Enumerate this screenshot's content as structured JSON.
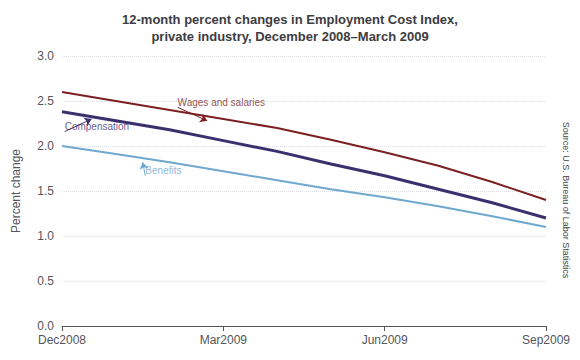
{
  "chart_data": {
    "type": "line",
    "title": "12-month percent changes in Employment Cost Index,\nprivate industry, December 2008–March 2009",
    "ylabel": "Percent change",
    "source": "Source: U.S. Bureau of Labor Statistics",
    "x": [
      0,
      1,
      2,
      3,
      4,
      5,
      6,
      7,
      8,
      9
    ],
    "xlim": [
      0,
      9
    ],
    "xticks": [
      {
        "value": 0,
        "label": "Dec2008"
      },
      {
        "value": 3,
        "label": "Mar2009"
      },
      {
        "value": 6,
        "label": "Jun2009"
      },
      {
        "value": 9,
        "label": "Sep2009"
      }
    ],
    "ylim": [
      0.0,
      3.0
    ],
    "yticks": [
      {
        "value": 0.0,
        "label": "0.0"
      },
      0.5,
      {
        "value": 1.0,
        "label": "1.0"
      },
      1.5,
      {
        "value": 2.0,
        "label": "2.0"
      },
      2.5,
      {
        "value": 3.0,
        "label": "3.0"
      }
    ],
    "grid": true,
    "series": [
      {
        "color": "#7B2020",
        "values": [
          2.6,
          2.5,
          2.4,
          2.3,
          2.2,
          2.07,
          1.93,
          1.78,
          1.6,
          1.4
        ]
      },
      {
        "color": "#3B2F6E",
        "values": [
          2.38,
          2.28,
          2.18,
          2.06,
          1.94,
          1.8,
          1.67,
          1.52,
          1.37,
          1.2
        ]
      },
      {
        "color": "#6EA8D0",
        "values": [
          2.0,
          1.91,
          1.82,
          1.72,
          1.62,
          1.52,
          1.43,
          1.33,
          1.22,
          1.1
        ]
      }
    ],
    "annotations": [
      {
        "text": "Wages and salaries",
        "xy": [
          2.7,
          2.28
        ],
        "xytext": [
          2.15,
          2.43
        ],
        "color": "#7B2020"
      },
      {
        "text": "Compensation",
        "xy": [
          0.55,
          2.3
        ],
        "xytext": [
          0.05,
          2.16
        ],
        "color": "#3B2F6E"
      },
      {
        "text": "Benefits",
        "xy": [
          1.5,
          1.82
        ],
        "xytext": [
          1.55,
          1.67
        ],
        "color": "#6EA8D0"
      }
    ]
  }
}
